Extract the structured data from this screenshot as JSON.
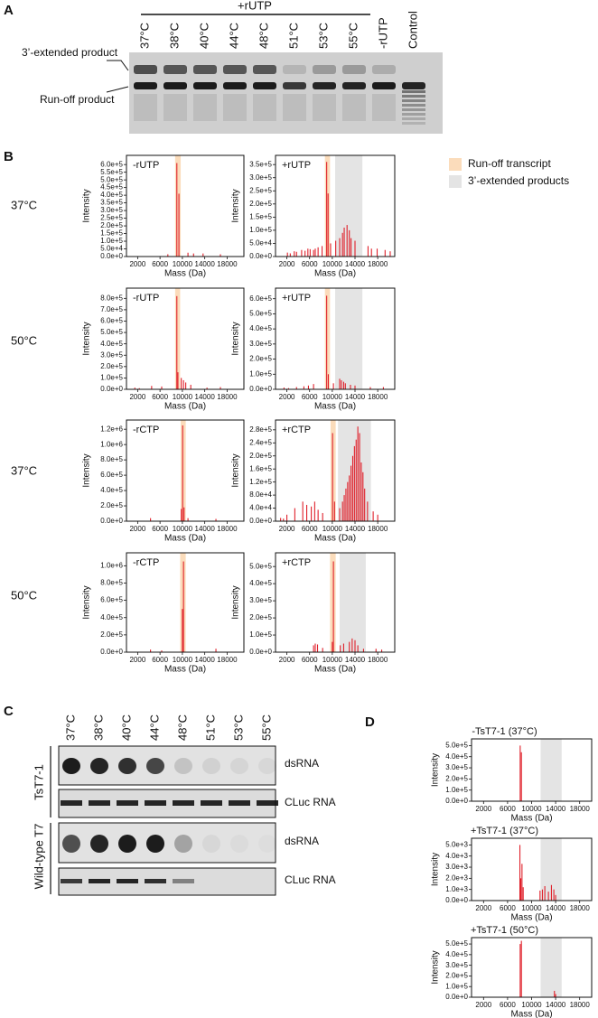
{
  "panel_a": {
    "letter": "A",
    "group_label": "+rUTP",
    "lanes": [
      "37°C",
      "38°C",
      "40°C",
      "44°C",
      "48°C",
      "51°C",
      "53°C",
      "55°C",
      "-rUTP",
      "Control"
    ],
    "band_labels": [
      "3’-extended product",
      "Run-off product"
    ]
  },
  "panel_b": {
    "letter": "B",
    "legend": [
      {
        "name": "Run-off transcript",
        "color": "#fbdcbb"
      },
      {
        "name": "3’-extended products",
        "color": "#e4e4e4"
      }
    ],
    "row_labels": [
      "37°C",
      "50°C",
      "37°C",
      "50°C"
    ]
  },
  "panel_c": {
    "letter": "C",
    "lanes": [
      "37°C",
      "38°C",
      "40°C",
      "44°C",
      "48°C",
      "51°C",
      "53°C",
      "55°C"
    ],
    "groups": [
      "TsT7-1",
      "Wild-type T7"
    ],
    "row_labels": [
      "dsRNA",
      "CLuc RNA",
      "dsRNA",
      "CLuc RNA"
    ]
  },
  "panel_d": {
    "letter": "D"
  },
  "chart_data": [
    {
      "type": "bar",
      "title": "-rUTP",
      "xlabel": "Mass (Da)",
      "ylabel": "Intensity",
      "color": "#e0202a",
      "x": [
        7400,
        9010,
        9380,
        11000,
        12000,
        13700,
        16800
      ],
      "values": [
        15000,
        610000,
        410000,
        25000,
        20000,
        20000,
        15000
      ],
      "xlim": [
        0,
        21000
      ],
      "ylim": [
        0,
        660000
      ],
      "xticks": [
        2000,
        6000,
        10000,
        14000,
        18000
      ],
      "yticks": [
        {
          "value": 0,
          "label": "0.0e+0"
        },
        {
          "value": 50000,
          "label": "5.0e+4"
        },
        {
          "value": 100000,
          "label": "1.0e+5"
        },
        {
          "value": 150000,
          "label": "1.5e+5"
        },
        {
          "value": 200000,
          "label": "2.0e+5"
        },
        {
          "value": 250000,
          "label": "2.5e+5"
        },
        {
          "value": 300000,
          "label": "3.0e+5"
        },
        {
          "value": 350000,
          "label": "3.5e+5"
        },
        {
          "value": 400000,
          "label": "4.0e+5"
        },
        {
          "value": 450000,
          "label": "4.5e+5"
        },
        {
          "value": 500000,
          "label": "5.0e+5"
        },
        {
          "value": 550000,
          "label": "5.5e+5"
        },
        {
          "value": 600000,
          "label": "6.0e+5"
        }
      ],
      "shading": [
        {
          "color": "#fbdcbb",
          "range": [
            8700,
            9700
          ]
        }
      ]
    },
    {
      "type": "bar",
      "title": "+rUTP",
      "xlabel": "Mass (Da)",
      "ylabel": "Intensity",
      "color": "#e0202a",
      "x": [
        2100,
        2600,
        3300,
        3700,
        4600,
        5200,
        5700,
        6100,
        6700,
        7000,
        7500,
        8200,
        9010,
        9260,
        9700,
        10600,
        11300,
        11800,
        12100,
        12600,
        13000,
        13300,
        14000,
        16300,
        16900,
        17900,
        19300,
        20200
      ],
      "values": [
        15000,
        12000,
        20000,
        18000,
        25000,
        22000,
        30000,
        28000,
        25000,
        30000,
        35000,
        40000,
        360000,
        240000,
        50000,
        60000,
        70000,
        90000,
        110000,
        120000,
        100000,
        70000,
        60000,
        40000,
        30000,
        30000,
        25000,
        20000
      ],
      "xlim": [
        0,
        21000
      ],
      "ylim": [
        0,
        385000
      ],
      "xticks": [
        2000,
        6000,
        10000,
        14000,
        18000
      ],
      "yticks": [
        {
          "value": 0,
          "label": "0.0e+0"
        },
        {
          "value": 50000,
          "label": "5.0e+4"
        },
        {
          "value": 100000,
          "label": "1.0e+5"
        },
        {
          "value": 150000,
          "label": "1.5e+5"
        },
        {
          "value": 200000,
          "label": "2.0e+5"
        },
        {
          "value": 250000,
          "label": "2.5e+5"
        },
        {
          "value": 300000,
          "label": "3.0e+5"
        },
        {
          "value": 350000,
          "label": "3.5e+5"
        }
      ],
      "shading": [
        {
          "color": "#fbdcbb",
          "range": [
            8700,
            9600
          ]
        },
        {
          "color": "#e4e4e4",
          "range": [
            10500,
            15300
          ]
        }
      ]
    },
    {
      "type": "bar",
      "title": "-rUTP",
      "xlabel": "Mass (Da)",
      "ylabel": "Intensity",
      "color": "#e0202a",
      "x": [
        1500,
        2300,
        4500,
        6300,
        9010,
        9200,
        9800,
        10200,
        10600,
        11500,
        14400,
        16800
      ],
      "values": [
        15000,
        10000,
        30000,
        25000,
        820000,
        150000,
        100000,
        80000,
        60000,
        40000,
        15000,
        20000
      ],
      "xlim": [
        0,
        21000
      ],
      "ylim": [
        0,
        890000
      ],
      "xticks": [
        2000,
        6000,
        10000,
        14000,
        18000
      ],
      "yticks": [
        {
          "value": 0,
          "label": "0.0e+0"
        },
        {
          "value": 100000,
          "label": "1.0e+5"
        },
        {
          "value": 200000,
          "label": "2.0e+5"
        },
        {
          "value": 300000,
          "label": "3.0e+5"
        },
        {
          "value": 400000,
          "label": "4.0e+5"
        },
        {
          "value": 500000,
          "label": "5.0e+5"
        },
        {
          "value": 600000,
          "label": "6.0e+5"
        },
        {
          "value": 700000,
          "label": "7.0e+5"
        },
        {
          "value": 800000,
          "label": "8.0e+5"
        }
      ],
      "shading": [
        {
          "color": "#fbdcbb",
          "range": [
            8700,
            9600
          ]
        }
      ]
    },
    {
      "type": "bar",
      "title": "+rUTP",
      "xlabel": "Mass (Da)",
      "ylabel": "Intensity",
      "color": "#e0202a",
      "x": [
        1500,
        2300,
        3700,
        5000,
        5800,
        6700,
        9010,
        9300,
        10200,
        11300,
        11600,
        12000,
        12300,
        13200,
        14000,
        16700,
        19000
      ],
      "values": [
        12000,
        8000,
        15000,
        20000,
        25000,
        35000,
        620000,
        100000,
        40000,
        70000,
        60000,
        50000,
        40000,
        30000,
        25000,
        15000,
        15000
      ],
      "xlim": [
        0,
        21000
      ],
      "ylim": [
        0,
        670000
      ],
      "xticks": [
        2000,
        6000,
        10000,
        14000,
        18000
      ],
      "yticks": [
        {
          "value": 0,
          "label": "0.0e+0"
        },
        {
          "value": 100000,
          "label": "1.0e+5"
        },
        {
          "value": 200000,
          "label": "2.0e+5"
        },
        {
          "value": 300000,
          "label": "3.0e+5"
        },
        {
          "value": 400000,
          "label": "4.0e+5"
        },
        {
          "value": 500000,
          "label": "5.0e+5"
        },
        {
          "value": 600000,
          "label": "6.0e+5"
        }
      ],
      "shading": [
        {
          "color": "#fbdcbb",
          "range": [
            8700,
            9600
          ]
        },
        {
          "color": "#e4e4e4",
          "range": [
            10500,
            15300
          ]
        }
      ]
    },
    {
      "type": "bar",
      "title": "-rCTP",
      "xlabel": "Mass (Da)",
      "ylabel": "Intensity",
      "color": "#e0202a",
      "x": [
        4300,
        9800,
        10050,
        10300,
        11000,
        16000
      ],
      "values": [
        40000,
        160000,
        1250000,
        180000,
        40000,
        30000
      ],
      "xlim": [
        0,
        21000
      ],
      "ylim": [
        0,
        1320000
      ],
      "xticks": [
        2000,
        6000,
        10000,
        14000,
        18000
      ],
      "yticks": [
        {
          "value": 0,
          "label": "0.0e+0"
        },
        {
          "value": 200000,
          "label": "2.0e+5"
        },
        {
          "value": 400000,
          "label": "4.0e+5"
        },
        {
          "value": 600000,
          "label": "6.0e+5"
        },
        {
          "value": 800000,
          "label": "8.0e+5"
        },
        {
          "value": 1000000,
          "label": "1.0e+6"
        },
        {
          "value": 1200000,
          "label": "1.2e+6"
        }
      ],
      "shading": [
        {
          "color": "#fbdcbb",
          "range": [
            9700,
            10600
          ]
        }
      ]
    },
    {
      "type": "bar",
      "title": "+rCTP",
      "xlabel": "Mass (Da)",
      "ylabel": "Intensity",
      "color": "#e0202a",
      "x": [
        900,
        1400,
        2000,
        3400,
        4800,
        5500,
        6300,
        6900,
        7500,
        8300,
        10050,
        10400,
        11300,
        11800,
        12100,
        12400,
        12700,
        13000,
        13300,
        13600,
        13900,
        14200,
        14500,
        14800,
        15100,
        15400,
        15700,
        16200,
        17200,
        18000
      ],
      "values": [
        10000,
        8000,
        20000,
        40000,
        60000,
        50000,
        45000,
        60000,
        35000,
        25000,
        270000,
        60000,
        40000,
        60000,
        80000,
        100000,
        120000,
        140000,
        170000,
        200000,
        230000,
        250000,
        290000,
        270000,
        180000,
        150000,
        100000,
        60000,
        30000,
        20000
      ],
      "xlim": [
        0,
        21000
      ],
      "ylim": [
        0,
        310000
      ],
      "xticks": [
        2000,
        6000,
        10000,
        14000,
        18000
      ],
      "yticks": [
        {
          "value": 0,
          "label": "0.0e+0"
        },
        {
          "value": 40000,
          "label": "4.0e+4"
        },
        {
          "value": 80000,
          "label": "8.0e+4"
        },
        {
          "value": 120000,
          "label": "1.2e+5"
        },
        {
          "value": 160000,
          "label": "1.6e+5"
        },
        {
          "value": 200000,
          "label": "2.0e+5"
        },
        {
          "value": 240000,
          "label": "2.4e+5"
        },
        {
          "value": 280000,
          "label": "2.8e+5"
        }
      ],
      "shading": [
        {
          "color": "#fbdcbb",
          "range": [
            9700,
            10600
          ]
        },
        {
          "color": "#e4e4e4",
          "range": [
            11000,
            16800
          ]
        }
      ]
    },
    {
      "type": "bar",
      "title": "-rCTP",
      "xlabel": "Mass (Da)",
      "ylabel": "Intensity",
      "color": "#e0202a",
      "x": [
        4300,
        6300,
        10000,
        10200,
        16000
      ],
      "values": [
        30000,
        20000,
        500000,
        1050000,
        40000
      ],
      "xlim": [
        0,
        21000
      ],
      "ylim": [
        0,
        1150000
      ],
      "xticks": [
        2000,
        6000,
        10000,
        14000,
        18000
      ],
      "yticks": [
        {
          "value": 0,
          "label": "0.0e+0"
        },
        {
          "value": 200000,
          "label": "2.0e+5"
        },
        {
          "value": 400000,
          "label": "4.0e+5"
        },
        {
          "value": 600000,
          "label": "6.0e+5"
        },
        {
          "value": 800000,
          "label": "8.0e+5"
        },
        {
          "value": 1000000,
          "label": "1.0e+6"
        }
      ],
      "shading": [
        {
          "color": "#fbdcbb",
          "range": [
            9600,
            10600
          ]
        }
      ]
    },
    {
      "type": "bar",
      "title": "+rCTP",
      "xlabel": "Mass (Da)",
      "ylabel": "Intensity",
      "color": "#e0202a",
      "x": [
        6700,
        7000,
        7400,
        8300,
        10000,
        10200,
        11400,
        12000,
        13000,
        13500,
        14000,
        14500,
        15500,
        17700,
        18700
      ],
      "values": [
        40000,
        50000,
        45000,
        25000,
        60000,
        530000,
        40000,
        50000,
        60000,
        80000,
        70000,
        40000,
        20000,
        20000,
        15000
      ],
      "xlim": [
        0,
        21000
      ],
      "ylim": [
        0,
        580000
      ],
      "xticks": [
        2000,
        6000,
        10000,
        14000,
        18000
      ],
      "yticks": [
        {
          "value": 0,
          "label": "0.0e+0"
        },
        {
          "value": 100000,
          "label": "1.0e+5"
        },
        {
          "value": 200000,
          "label": "2.0e+5"
        },
        {
          "value": 300000,
          "label": "3.0e+5"
        },
        {
          "value": 400000,
          "label": "4.0e+5"
        },
        {
          "value": 500000,
          "label": "5.0e+5"
        }
      ],
      "shading": [
        {
          "color": "#fbdcbb",
          "range": [
            9600,
            10600
          ]
        },
        {
          "color": "#e4e4e4",
          "range": [
            11300,
            15900
          ]
        }
      ]
    },
    {
      "type": "bar",
      "title": "-TsT7-1 (37°C)",
      "xlabel": "Mass (Da)",
      "ylabel": "Intensity",
      "color": "#e0202a",
      "x": [
        8100,
        8300
      ],
      "values": [
        500000,
        440000
      ],
      "xlim": [
        0,
        20000
      ],
      "ylim": [
        0,
        560000
      ],
      "xticks": [
        2000,
        6000,
        10000,
        14000,
        18000
      ],
      "yticks": [
        {
          "value": 0,
          "label": "0.0e+0"
        },
        {
          "value": 100000,
          "label": "1.0e+5"
        },
        {
          "value": 200000,
          "label": "2.0e+5"
        },
        {
          "value": 300000,
          "label": "3.0e+5"
        },
        {
          "value": 400000,
          "label": "4.0e+5"
        },
        {
          "value": 500000,
          "label": "5.0e+5"
        }
      ],
      "shading": [
        {
          "color": "#e4e4e4",
          "range": [
            11500,
            15000
          ]
        }
      ]
    },
    {
      "type": "bar",
      "title": "+TsT7-1 (37°C)",
      "xlabel": "Mass (Da)",
      "ylabel": "Intensity",
      "color": "#e0202a",
      "x": [
        8050,
        8200,
        8400,
        8600,
        11400,
        11800,
        12200,
        12800,
        13300,
        13700,
        14000
      ],
      "values": [
        5000,
        2000,
        3300,
        1200,
        900,
        1000,
        1300,
        800,
        1400,
        1000,
        500
      ],
      "xlim": [
        0,
        20000
      ],
      "ylim": [
        0,
        5600
      ],
      "xticks": [
        2000,
        6000,
        10000,
        14000,
        18000
      ],
      "yticks": [
        {
          "value": 0,
          "label": "0.0e+0"
        },
        {
          "value": 1000,
          "label": "1.0e+3"
        },
        {
          "value": 2000,
          "label": "2.0e+3"
        },
        {
          "value": 3000,
          "label": "3.0e+3"
        },
        {
          "value": 4000,
          "label": "4.0e+3"
        },
        {
          "value": 5000,
          "label": "5.0e+3"
        }
      ],
      "shading": [
        {
          "color": "#e4e4e4",
          "range": [
            11500,
            15000
          ]
        }
      ]
    },
    {
      "type": "bar",
      "title": "+TsT7-1 (50°C)",
      "xlabel": "Mass (Da)",
      "ylabel": "Intensity",
      "color": "#e0202a",
      "x": [
        8100,
        8300,
        13800,
        14000
      ],
      "values": [
        500000,
        530000,
        60000,
        30000
      ],
      "xlim": [
        0,
        20000
      ],
      "ylim": [
        0,
        560000
      ],
      "xticks": [
        2000,
        6000,
        10000,
        14000,
        18000
      ],
      "yticks": [
        {
          "value": 0,
          "label": "0.0e+0"
        },
        {
          "value": 100000,
          "label": "1.0e+5"
        },
        {
          "value": 200000,
          "label": "2.0e+5"
        },
        {
          "value": 300000,
          "label": "3.0e+5"
        },
        {
          "value": 400000,
          "label": "4.0e+5"
        },
        {
          "value": 500000,
          "label": "5.0e+5"
        }
      ],
      "shading": [
        {
          "color": "#e4e4e4",
          "range": [
            11500,
            15000
          ]
        }
      ]
    }
  ]
}
